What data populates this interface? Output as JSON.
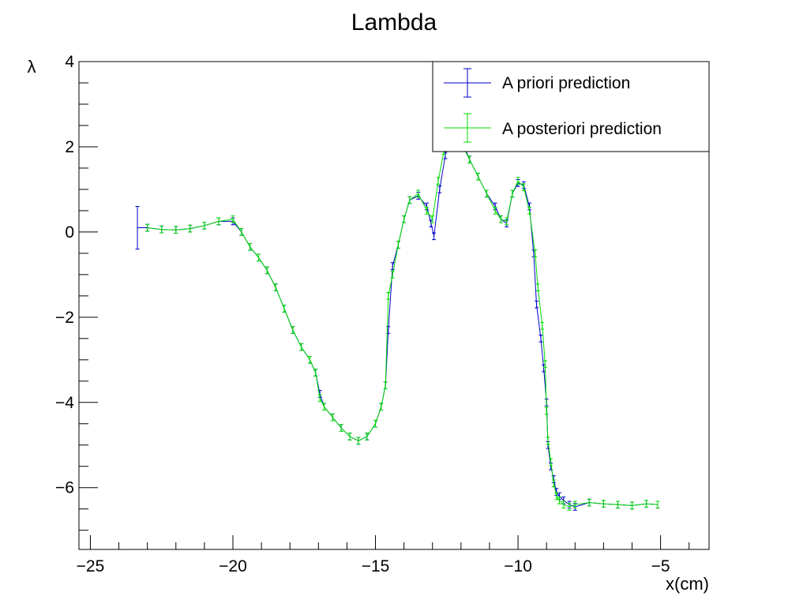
{
  "chart_data": {
    "type": "line",
    "title": "Lambda",
    "xlabel": "x(cm)",
    "ylabel": "λ",
    "xlim": [
      -25.4,
      -3.3
    ],
    "ylim": [
      -7.45,
      4.0
    ],
    "x_ticks": [
      -25,
      -20,
      -15,
      -10,
      -5
    ],
    "x_tick_labels": [
      "−25",
      "−20",
      "−15",
      "−10",
      "−5"
    ],
    "y_ticks": [
      -6,
      -4,
      -2,
      0,
      2,
      4
    ],
    "y_tick_labels": [
      "−6",
      "−4",
      "−2",
      "0",
      "2",
      "4"
    ],
    "grid": false,
    "legend_position": "top-right",
    "series": [
      {
        "name": "A priori prediction",
        "color": "#0000cc",
        "x": [
          -23.35,
          -23.0,
          -22.5,
          -22.0,
          -21.5,
          -21.0,
          -20.5,
          -20.0,
          -19.7,
          -19.4,
          -19.1,
          -18.8,
          -18.5,
          -18.2,
          -17.9,
          -17.6,
          -17.3,
          -17.1,
          -16.95,
          -16.8,
          -16.5,
          -16.2,
          -15.9,
          -15.6,
          -15.3,
          -15.0,
          -14.8,
          -14.65,
          -14.55,
          -14.4,
          -14.2,
          -14.0,
          -13.8,
          -13.5,
          -13.2,
          -13.05,
          -12.95,
          -12.75,
          -12.55,
          -12.3,
          -12.0,
          -11.7,
          -11.4,
          -11.1,
          -10.8,
          -10.6,
          -10.4,
          -10.2,
          -10.0,
          -9.8,
          -9.6,
          -9.45,
          -9.35,
          -9.2,
          -9.1,
          -9.0,
          -8.95,
          -8.85,
          -8.75,
          -8.65,
          -8.55,
          -8.4,
          -8.2,
          -8.0,
          -7.5,
          -7.0,
          -6.5,
          -6.0,
          -5.5,
          -5.1
        ],
        "y": [
          0.1,
          0.1,
          0.06,
          0.05,
          0.08,
          0.15,
          0.25,
          0.25,
          0.0,
          -0.35,
          -0.6,
          -0.9,
          -1.3,
          -1.8,
          -2.3,
          -2.7,
          -3.0,
          -3.3,
          -3.8,
          -4.1,
          -4.35,
          -4.6,
          -4.8,
          -4.9,
          -4.8,
          -4.5,
          -4.1,
          -3.6,
          -2.3,
          -0.8,
          -0.3,
          0.3,
          0.75,
          0.85,
          0.6,
          0.2,
          -0.1,
          1.0,
          1.8,
          2.3,
          2.2,
          1.7,
          1.3,
          0.9,
          0.6,
          0.3,
          0.2,
          0.9,
          1.15,
          1.1,
          0.6,
          -0.5,
          -1.7,
          -2.5,
          -3.2,
          -4.0,
          -5.0,
          -5.5,
          -5.8,
          -6.1,
          -6.2,
          -6.3,
          -6.4,
          -6.45,
          -6.35,
          -6.38,
          -6.4,
          -6.42,
          -6.38,
          -6.4
        ],
        "err_first": 0.5,
        "err": 0.08
      },
      {
        "name": "A posteriori prediction",
        "color": "#00dd00",
        "x": [
          -23.0,
          -22.5,
          -22.0,
          -21.5,
          -21.0,
          -20.5,
          -20.0,
          -19.7,
          -19.4,
          -19.1,
          -18.8,
          -18.5,
          -18.2,
          -17.9,
          -17.6,
          -17.3,
          -17.1,
          -16.95,
          -16.8,
          -16.5,
          -16.2,
          -15.9,
          -15.6,
          -15.3,
          -15.0,
          -14.8,
          -14.65,
          -14.55,
          -14.4,
          -14.2,
          -14.0,
          -13.8,
          -13.5,
          -13.2,
          -13.0,
          -12.8,
          -12.6,
          -12.3,
          -12.0,
          -11.7,
          -11.4,
          -11.1,
          -10.8,
          -10.6,
          -10.4,
          -10.2,
          -10.0,
          -9.8,
          -9.6,
          -9.4,
          -9.3,
          -9.15,
          -9.05,
          -9.0,
          -8.95,
          -8.85,
          -8.75,
          -8.65,
          -8.55,
          -8.4,
          -8.2,
          -8.0,
          -7.5,
          -7.0,
          -6.5,
          -6.0,
          -5.5,
          -5.1
        ],
        "y": [
          0.1,
          0.06,
          0.05,
          0.08,
          0.15,
          0.25,
          0.3,
          0.0,
          -0.35,
          -0.6,
          -0.9,
          -1.3,
          -1.8,
          -2.3,
          -2.7,
          -3.0,
          -3.3,
          -3.9,
          -4.1,
          -4.35,
          -4.6,
          -4.8,
          -4.9,
          -4.8,
          -4.5,
          -4.1,
          -3.6,
          -1.5,
          -1.0,
          -0.3,
          0.3,
          0.75,
          0.9,
          0.5,
          0.3,
          1.2,
          1.9,
          2.2,
          2.1,
          1.7,
          1.3,
          0.9,
          0.5,
          0.3,
          0.25,
          0.9,
          1.2,
          1.05,
          0.5,
          -0.5,
          -1.3,
          -2.2,
          -3.1,
          -4.2,
          -4.9,
          -5.4,
          -5.9,
          -6.2,
          -6.3,
          -6.4,
          -6.45,
          -6.4,
          -6.35,
          -6.38,
          -6.4,
          -6.42,
          -6.38,
          -6.4
        ],
        "err": 0.08
      }
    ]
  }
}
